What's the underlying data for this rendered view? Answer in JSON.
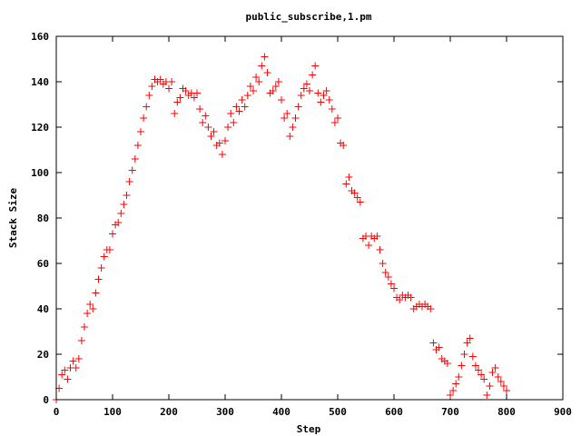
{
  "chart_data": {
    "type": "scatter",
    "title": "public_subscribe,1.pm",
    "xlabel": "Step",
    "ylabel": "Stack Size",
    "xlim": [
      0,
      900
    ],
    "ylim": [
      0,
      160
    ],
    "xticks": [
      "0",
      "100",
      "200",
      "300",
      "400",
      "500",
      "600",
      "700",
      "800",
      "900"
    ],
    "yticks": [
      "0",
      "20",
      "40",
      "60",
      "80",
      "100",
      "120",
      "140",
      "160"
    ],
    "grid": false,
    "legend": "none",
    "marker": "+",
    "marker_color": "#ff0000",
    "series": [
      {
        "points": [
          [
            0,
            0
          ],
          [
            5,
            5
          ],
          [
            10,
            11
          ],
          [
            15,
            13
          ],
          [
            20,
            9
          ],
          [
            25,
            14
          ],
          [
            30,
            17
          ],
          [
            35,
            14
          ],
          [
            40,
            18
          ],
          [
            45,
            26
          ],
          [
            50,
            32
          ],
          [
            55,
            38
          ],
          [
            60,
            42
          ],
          [
            65,
            40
          ],
          [
            70,
            47
          ],
          [
            75,
            53
          ],
          [
            80,
            58
          ],
          [
            85,
            63
          ],
          [
            90,
            66
          ],
          [
            95,
            66
          ],
          [
            100,
            73
          ],
          [
            105,
            77
          ],
          [
            110,
            78
          ],
          [
            115,
            82
          ],
          [
            120,
            86
          ],
          [
            125,
            90
          ],
          [
            130,
            96
          ],
          [
            135,
            101
          ],
          [
            140,
            106
          ],
          [
            145,
            112
          ],
          [
            150,
            118
          ],
          [
            155,
            124
          ],
          [
            160,
            129
          ],
          [
            165,
            134
          ],
          [
            170,
            138
          ],
          [
            175,
            141
          ],
          [
            180,
            140
          ],
          [
            185,
            141
          ],
          [
            190,
            139
          ],
          [
            195,
            140
          ],
          [
            200,
            137
          ],
          [
            205,
            140
          ],
          [
            210,
            126
          ],
          [
            215,
            131
          ],
          [
            220,
            133
          ],
          [
            225,
            137
          ],
          [
            230,
            136
          ],
          [
            235,
            134
          ],
          [
            240,
            135
          ],
          [
            245,
            133
          ],
          [
            250,
            135
          ],
          [
            255,
            128
          ],
          [
            260,
            122
          ],
          [
            265,
            125
          ],
          [
            270,
            120
          ],
          [
            275,
            116
          ],
          [
            280,
            118
          ],
          [
            285,
            112
          ],
          [
            290,
            113
          ],
          [
            295,
            108
          ],
          [
            300,
            114
          ],
          [
            305,
            120
          ],
          [
            310,
            126
          ],
          [
            315,
            122
          ],
          [
            320,
            129
          ],
          [
            325,
            127
          ],
          [
            330,
            132
          ],
          [
            335,
            129
          ],
          [
            340,
            134
          ],
          [
            345,
            138
          ],
          [
            350,
            136
          ],
          [
            355,
            142
          ],
          [
            360,
            140
          ],
          [
            365,
            147
          ],
          [
            370,
            151
          ],
          [
            375,
            144
          ],
          [
            380,
            135
          ],
          [
            385,
            136
          ],
          [
            390,
            138
          ],
          [
            395,
            140
          ],
          [
            400,
            132
          ],
          [
            405,
            124
          ],
          [
            410,
            126
          ],
          [
            415,
            116
          ],
          [
            420,
            120
          ],
          [
            425,
            124
          ],
          [
            430,
            129
          ],
          [
            435,
            134
          ],
          [
            440,
            137
          ],
          [
            445,
            139
          ],
          [
            450,
            136
          ],
          [
            455,
            143
          ],
          [
            460,
            147
          ],
          [
            465,
            135
          ],
          [
            470,
            131
          ],
          [
            475,
            134
          ],
          [
            480,
            136
          ],
          [
            485,
            132
          ],
          [
            490,
            128
          ],
          [
            495,
            122
          ],
          [
            500,
            124
          ],
          [
            505,
            113
          ],
          [
            510,
            112
          ],
          [
            515,
            95
          ],
          [
            520,
            98
          ],
          [
            525,
            92
          ],
          [
            530,
            91
          ],
          [
            535,
            89
          ],
          [
            540,
            87
          ],
          [
            545,
            71
          ],
          [
            550,
            72
          ],
          [
            555,
            68
          ],
          [
            560,
            72
          ],
          [
            565,
            71
          ],
          [
            570,
            72
          ],
          [
            575,
            66
          ],
          [
            580,
            60
          ],
          [
            585,
            56
          ],
          [
            590,
            54
          ],
          [
            595,
            51
          ],
          [
            600,
            49
          ],
          [
            605,
            45
          ],
          [
            610,
            44
          ],
          [
            615,
            46
          ],
          [
            620,
            45
          ],
          [
            625,
            46
          ],
          [
            630,
            45
          ],
          [
            635,
            40
          ],
          [
            640,
            41
          ],
          [
            645,
            42
          ],
          [
            650,
            41
          ],
          [
            655,
            42
          ],
          [
            660,
            41
          ],
          [
            665,
            40
          ],
          [
            670,
            25
          ],
          [
            675,
            22
          ],
          [
            680,
            23
          ],
          [
            685,
            18
          ],
          [
            690,
            17
          ],
          [
            695,
            16
          ],
          [
            700,
            2
          ],
          [
            705,
            4
          ],
          [
            710,
            7
          ],
          [
            715,
            10
          ],
          [
            720,
            15
          ],
          [
            725,
            20
          ],
          [
            730,
            25
          ],
          [
            735,
            27
          ],
          [
            740,
            19
          ],
          [
            745,
            15
          ],
          [
            750,
            13
          ],
          [
            755,
            11
          ],
          [
            760,
            9
          ],
          [
            765,
            2
          ],
          [
            770,
            6
          ],
          [
            775,
            12
          ],
          [
            780,
            14
          ],
          [
            785,
            10
          ],
          [
            790,
            8
          ],
          [
            795,
            6
          ],
          [
            800,
            4
          ]
        ]
      }
    ]
  }
}
